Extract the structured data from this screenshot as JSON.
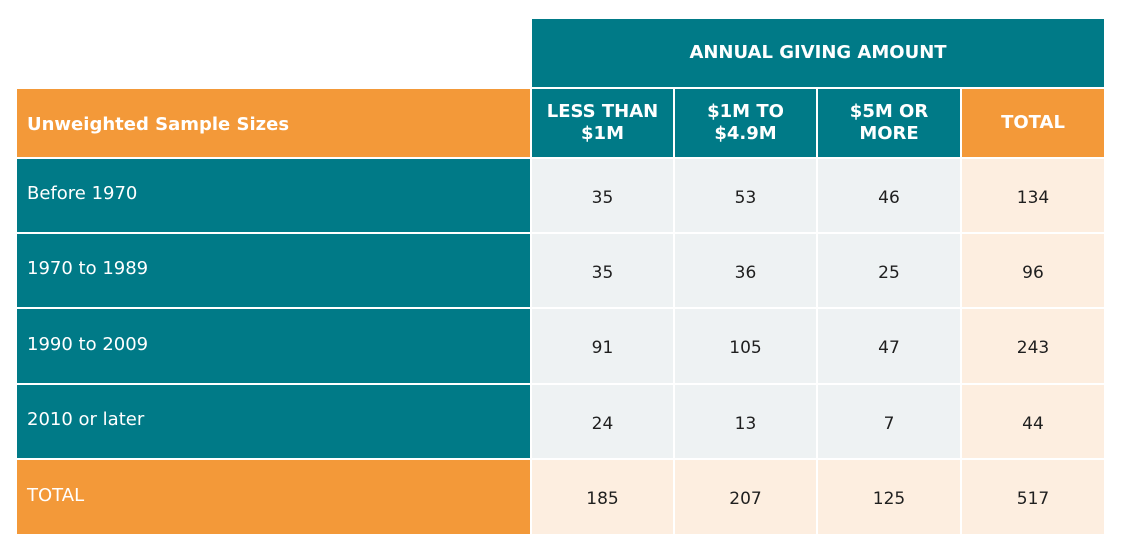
{
  "table": {
    "group_header": "ANNUAL GIVING AMOUNT",
    "corner_label": "Unweighted Sample Sizes",
    "columns": [
      "LESS THAN $1M",
      "$1M TO $4.9M",
      "$5M OR MORE",
      "TOTAL"
    ],
    "rows": [
      {
        "label": "Before 1970",
        "values": [
          "35",
          "53",
          "46",
          "134"
        ]
      },
      {
        "label": "1970 to 1989",
        "values": [
          "35",
          "36",
          "25",
          "96"
        ]
      },
      {
        "label": "1990 to 2009",
        "values": [
          "91",
          "105",
          "47",
          "243"
        ]
      },
      {
        "label": "2010 or later",
        "values": [
          "24",
          "13",
          "7",
          "44"
        ]
      },
      {
        "label": "TOTAL",
        "values": [
          "185",
          "207",
          "125",
          "517"
        ]
      }
    ]
  },
  "colors": {
    "teal": "#007a87",
    "orange": "#f39939",
    "grey_cell": "#eef2f3",
    "peach_cell": "#fdeee0"
  }
}
